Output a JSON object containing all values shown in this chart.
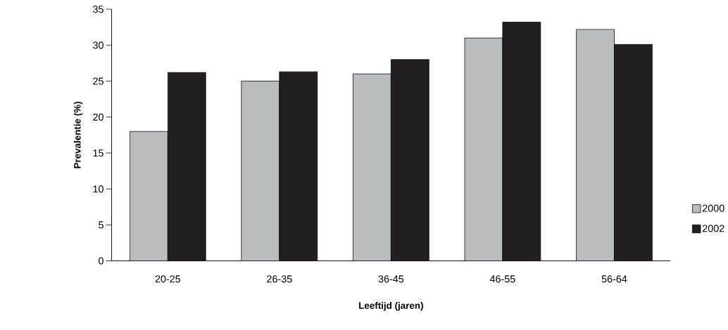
{
  "chart_data": {
    "type": "bar",
    "xlabel": "Leeftijd (jaren)",
    "ylabel": "Prevalentie (%)",
    "categories": [
      "20-25",
      "26-35",
      "36-45",
      "46-55",
      "56-64"
    ],
    "series": [
      {
        "name": "2000",
        "color": "#bbbcc0",
        "values": [
          18,
          25,
          26,
          31,
          32.2
        ]
      },
      {
        "name": "2002",
        "color": "#231f20",
        "values": [
          26.2,
          26.3,
          28,
          33.2,
          30.1
        ]
      }
    ],
    "ylim": [
      0,
      35
    ],
    "yticks": [
      0,
      5,
      10,
      15,
      20,
      25,
      30,
      35
    ],
    "legend": "right"
  }
}
